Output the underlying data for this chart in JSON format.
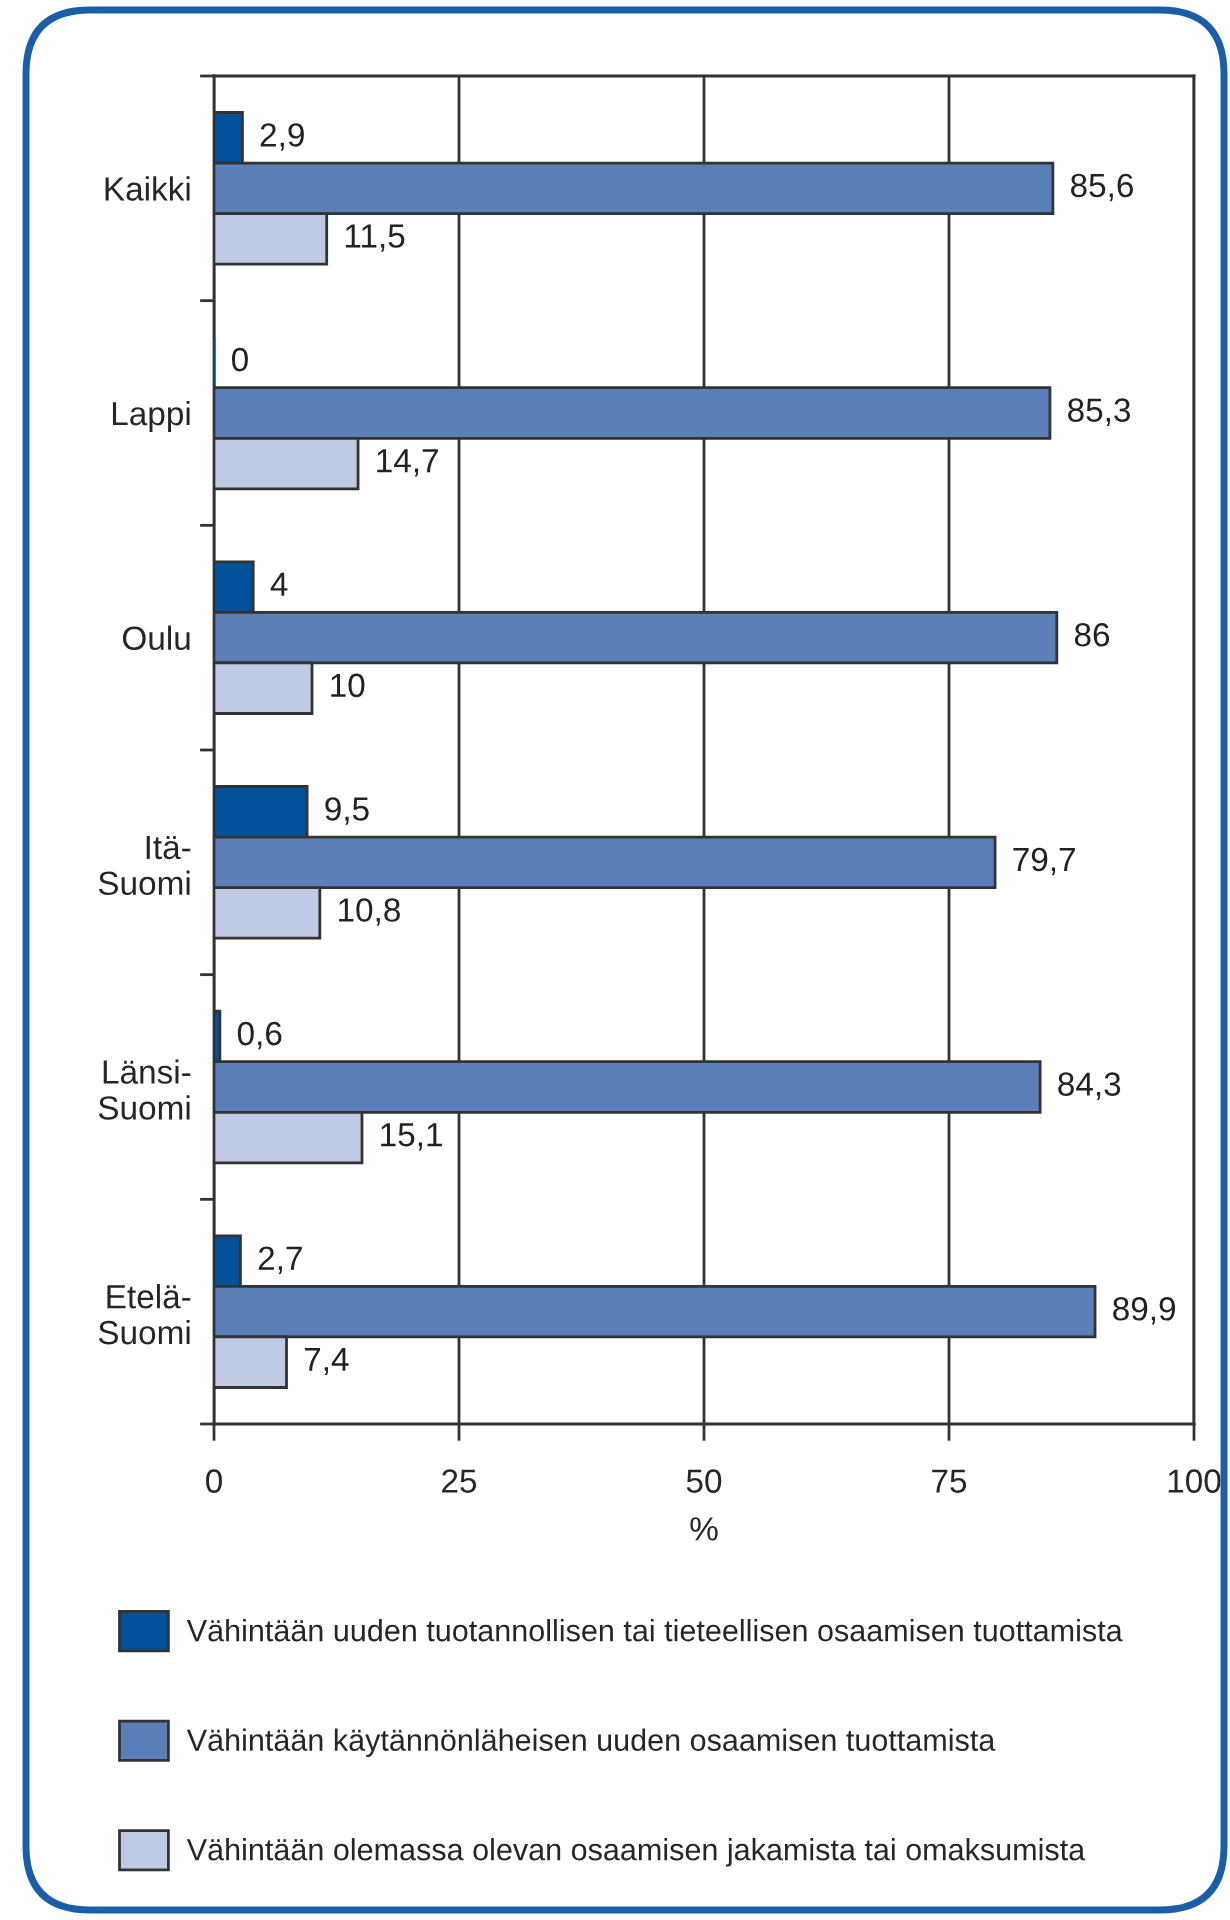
{
  "chart_data": {
    "type": "bar",
    "orientation": "horizontal",
    "categories": [
      "Kaikki",
      "Lappi",
      "Oulu",
      "Itä-\nSuomi",
      "Länsi-\nSuomi",
      "Etelä-\nSuomi"
    ],
    "xlabel": "%",
    "xlim": [
      0,
      100
    ],
    "xticks": [
      0,
      25,
      50,
      75,
      100
    ],
    "grid": "x",
    "legend": "bottom",
    "series": [
      {
        "name": "Vähintään uuden tuotannollisen tai tieteellisen osaamisen tuottamista",
        "color": "#03509b",
        "values": [
          2.9,
          0,
          4,
          9.5,
          0.6,
          2.7
        ],
        "value_labels": [
          "2,9",
          "0",
          "4",
          "9,5",
          "0,6",
          "2,7"
        ]
      },
      {
        "name": "Vähintään käytännönläheisen uuden osaamisen tuottamista",
        "color": "#5b7fb8",
        "values": [
          85.6,
          85.3,
          86,
          79.7,
          84.3,
          89.9
        ],
        "value_labels": [
          "85,6",
          "85,3",
          "86",
          "79,7",
          "84,3",
          "89,9"
        ]
      },
      {
        "name": "Vähintään olemassa olevan osaamisen jakamista tai omaksumista",
        "color": "#bfcbe4",
        "values": [
          11.5,
          14.7,
          10,
          10.8,
          15.1,
          7.4
        ],
        "value_labels": [
          "11,5",
          "14,7",
          "10",
          "10,8",
          "15,1",
          "7,4"
        ]
      }
    ]
  }
}
